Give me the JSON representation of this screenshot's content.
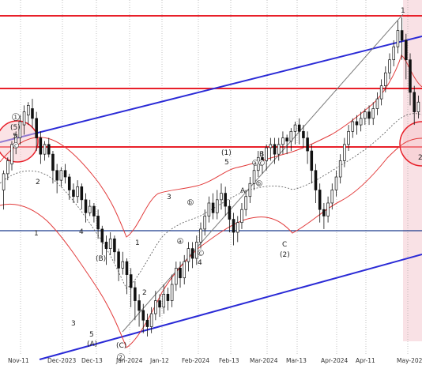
{
  "chart_data": {
    "type": "candlestick",
    "x_labels": [
      "Nov-11",
      "Dec-2023",
      "Dec-13",
      "Jan-2024",
      "Jan-12",
      "Feb-2024",
      "Feb-13",
      "Mar-2024",
      "Mar-13",
      "Apr-2024",
      "Apr-11",
      "May-2024"
    ],
    "y_range": [
      0,
      100
    ],
    "grid": true,
    "candles": [
      [
        0,
        46,
        51,
        40,
        52
      ],
      [
        1,
        51,
        55,
        49,
        56
      ],
      [
        2,
        54,
        60,
        52,
        61
      ],
      [
        3,
        59,
        63,
        57,
        64
      ],
      [
        4,
        62,
        67,
        60,
        69
      ],
      [
        5,
        66,
        70,
        63,
        72
      ],
      [
        6,
        69,
        72,
        66,
        73
      ],
      [
        7,
        71,
        68,
        65,
        74
      ],
      [
        8,
        68,
        62,
        58,
        70
      ],
      [
        9,
        62,
        57,
        54,
        64
      ],
      [
        10,
        57,
        60,
        55,
        61
      ],
      [
        11,
        60,
        57,
        56,
        62
      ],
      [
        12,
        57,
        52,
        48,
        58
      ],
      [
        13,
        52,
        49,
        45,
        54
      ],
      [
        14,
        49,
        52,
        47,
        53
      ],
      [
        15,
        52,
        50,
        48,
        54
      ],
      [
        16,
        50,
        46,
        43,
        51
      ],
      [
        17,
        46,
        44,
        42,
        48
      ],
      [
        18,
        44,
        47,
        42,
        49
      ],
      [
        19,
        47,
        43,
        40,
        48
      ],
      [
        20,
        43,
        39,
        36,
        45
      ],
      [
        21,
        39,
        41,
        38,
        43
      ],
      [
        22,
        41,
        38,
        36,
        42
      ],
      [
        23,
        38,
        34,
        31,
        40
      ],
      [
        24,
        34,
        30,
        26,
        35
      ],
      [
        25,
        30,
        28,
        23,
        32
      ],
      [
        26,
        28,
        31,
        26,
        33
      ],
      [
        27,
        31,
        27,
        24,
        32
      ],
      [
        28,
        27,
        22,
        18,
        28
      ],
      [
        29,
        22,
        24,
        20,
        27
      ],
      [
        30,
        24,
        20,
        14,
        25
      ],
      [
        31,
        20,
        16,
        10,
        22
      ],
      [
        32,
        16,
        12,
        6,
        18
      ],
      [
        33,
        12,
        9,
        4,
        14
      ],
      [
        34,
        9,
        6,
        2,
        11
      ],
      [
        35,
        6,
        4,
        1,
        8
      ],
      [
        36,
        4,
        8,
        2,
        10
      ],
      [
        37,
        8,
        12,
        6,
        15
      ],
      [
        38,
        12,
        10,
        7,
        14
      ],
      [
        39,
        10,
        14,
        8,
        17
      ],
      [
        40,
        14,
        12,
        9,
        16
      ],
      [
        41,
        12,
        17,
        10,
        20
      ],
      [
        42,
        17,
        22,
        15,
        24
      ],
      [
        43,
        22,
        19,
        16,
        24
      ],
      [
        44,
        19,
        24,
        17,
        26
      ],
      [
        45,
        24,
        28,
        21,
        30
      ],
      [
        46,
        28,
        25,
        22,
        30
      ],
      [
        47,
        25,
        30,
        23,
        32
      ],
      [
        48,
        30,
        34,
        28,
        36
      ],
      [
        49,
        34,
        38,
        32,
        40
      ],
      [
        50,
        38,
        42,
        36,
        44
      ],
      [
        51,
        42,
        39,
        37,
        45
      ],
      [
        52,
        39,
        43,
        37,
        46
      ],
      [
        53,
        43,
        45,
        40,
        48
      ],
      [
        54,
        45,
        41,
        38,
        47
      ],
      [
        55,
        41,
        37,
        33,
        43
      ],
      [
        56,
        37,
        33,
        29,
        39
      ],
      [
        57,
        33,
        36,
        30,
        38
      ],
      [
        58,
        36,
        40,
        34,
        42
      ],
      [
        59,
        40,
        44,
        38,
        46
      ],
      [
        60,
        44,
        48,
        42,
        50
      ],
      [
        61,
        48,
        52,
        46,
        54
      ],
      [
        62,
        52,
        56,
        50,
        58
      ],
      [
        63,
        56,
        55,
        51,
        58
      ],
      [
        64,
        55,
        59,
        52,
        60
      ],
      [
        65,
        59,
        60,
        55,
        62
      ],
      [
        66,
        60,
        57,
        54,
        62
      ],
      [
        67,
        57,
        60,
        55,
        62
      ],
      [
        68,
        60,
        62,
        57,
        64
      ],
      [
        69,
        62,
        61,
        57,
        63
      ],
      [
        70,
        61,
        64,
        58,
        65
      ],
      [
        71,
        64,
        66,
        60,
        67
      ],
      [
        72,
        66,
        64,
        60,
        68
      ],
      [
        73,
        64,
        62,
        59,
        66
      ],
      [
        74,
        62,
        58,
        54,
        64
      ],
      [
        75,
        58,
        52,
        48,
        60
      ],
      [
        76,
        52,
        46,
        42,
        54
      ],
      [
        77,
        46,
        40,
        36,
        48
      ],
      [
        78,
        40,
        38,
        34,
        42
      ],
      [
        79,
        38,
        42,
        36,
        44
      ],
      [
        80,
        42,
        46,
        40,
        48
      ],
      [
        81,
        46,
        50,
        44,
        52
      ],
      [
        82,
        50,
        55,
        48,
        57
      ],
      [
        83,
        55,
        60,
        53,
        62
      ],
      [
        84,
        60,
        64,
        58,
        66
      ],
      [
        85,
        64,
        67,
        62,
        68
      ],
      [
        86,
        67,
        66,
        63,
        69
      ],
      [
        87,
        66,
        68,
        64,
        70
      ],
      [
        88,
        68,
        70,
        66,
        71
      ],
      [
        89,
        70,
        68,
        66,
        72
      ],
      [
        90,
        68,
        71,
        66,
        73
      ],
      [
        91,
        71,
        74,
        69,
        76
      ],
      [
        92,
        74,
        78,
        72,
        80
      ],
      [
        93,
        78,
        82,
        76,
        84
      ],
      [
        94,
        82,
        86,
        80,
        88
      ],
      [
        95,
        86,
        90,
        84,
        92
      ],
      [
        96,
        90,
        95,
        88,
        98
      ],
      [
        97,
        95,
        92,
        86,
        99
      ],
      [
        98,
        92,
        86,
        80,
        94
      ],
      [
        99,
        86,
        76,
        72,
        88
      ],
      [
        100,
        76,
        70,
        66,
        78
      ],
      [
        101,
        70,
        73,
        68,
        75
      ]
    ]
  }
}
